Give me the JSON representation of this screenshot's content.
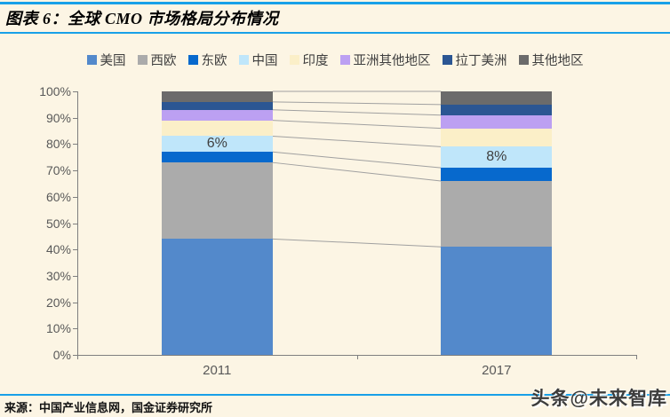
{
  "header": {
    "title": "图表 6：全球 CMO 市场格局分布情况"
  },
  "footer": {
    "source": "来源：中国产业信息网，国金证券研究所",
    "watermark": "头条@未来智库"
  },
  "colors": {
    "background": "#FCF5E4",
    "rule_blue": "#18A0E8",
    "axis": "#7F7F7F",
    "axis_text": "#595959",
    "connector": "#A0A0A0",
    "data_label": "#3F3F3F"
  },
  "chart_data": {
    "type": "bar",
    "variant": "stacked-100-percent-column",
    "title": "全球 CMO 市场格局分布情况",
    "categories": [
      "2011",
      "2017"
    ],
    "series": [
      {
        "name": "美国",
        "color": "#5389CB",
        "values": [
          44,
          41
        ]
      },
      {
        "name": "西欧",
        "color": "#ABABAB",
        "values": [
          29,
          25
        ]
      },
      {
        "name": "东欧",
        "color": "#0769CD",
        "values": [
          4,
          5
        ]
      },
      {
        "name": "中国",
        "color": "#BFE6FA",
        "values": [
          6,
          8
        ]
      },
      {
        "name": "印度",
        "color": "#FBEFC8",
        "values": [
          6,
          7
        ]
      },
      {
        "name": "亚洲其他地区",
        "color": "#BCA0F2",
        "values": [
          4,
          5
        ]
      },
      {
        "name": "拉丁美洲",
        "color": "#2B5693",
        "values": [
          3,
          4
        ]
      },
      {
        "name": "其他地区",
        "color": "#6B6B6B",
        "values": [
          4,
          5
        ]
      }
    ],
    "data_labels": [
      {
        "category": "2011",
        "series": "中国",
        "text": "6%"
      },
      {
        "category": "2017",
        "series": "中国",
        "text": "8%"
      }
    ],
    "y_ticks": [
      "0%",
      "10%",
      "20%",
      "30%",
      "40%",
      "50%",
      "60%",
      "70%",
      "80%",
      "90%",
      "100%"
    ],
    "ylim": [
      0,
      100
    ],
    "xlabel": "",
    "ylabel": "",
    "legend_position": "top",
    "series_lines": true,
    "grid": false
  }
}
